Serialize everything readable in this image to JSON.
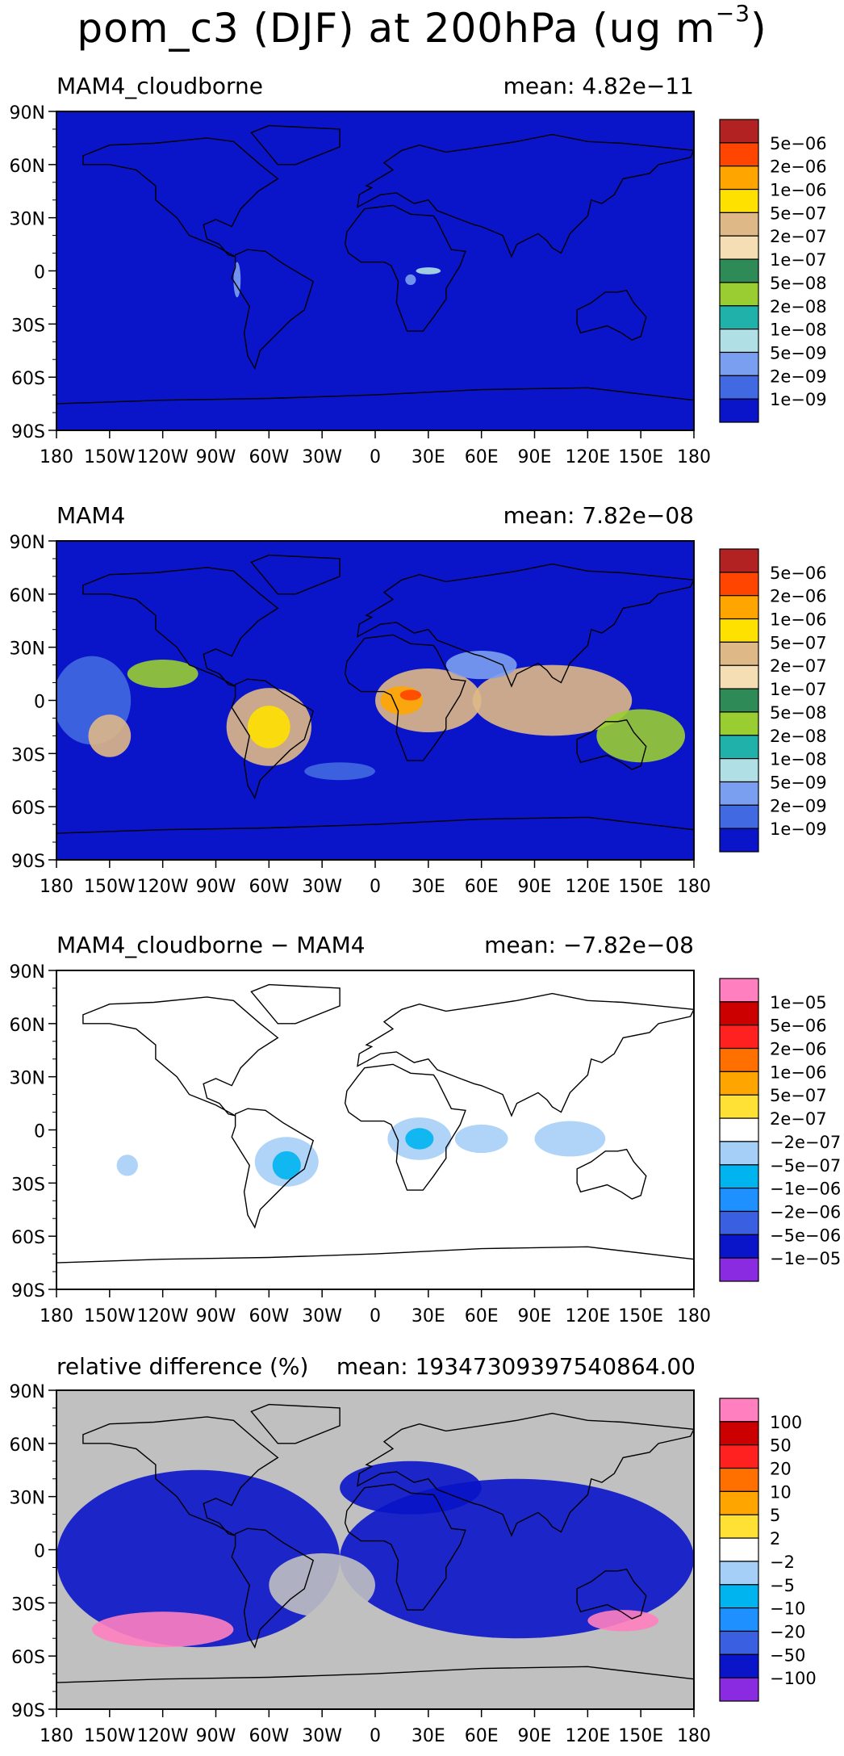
{
  "figure": {
    "title_main": "pom_c3 (DJF) at 200hPa (ug m",
    "title_sup": "−3",
    "title_close": ")"
  },
  "axes": {
    "lat_labels": [
      "90N",
      "60N",
      "30N",
      "0",
      "30S",
      "60S",
      "90S"
    ],
    "lon_labels": [
      "180",
      "150W",
      "120W",
      "90W",
      "60W",
      "30W",
      "0",
      "30E",
      "60E",
      "90E",
      "120E",
      "150E",
      "180"
    ]
  },
  "panels": [
    {
      "name": "MAM4_cloudborne",
      "mean": "mean: 4.82e−11",
      "background": "#0a14c8",
      "colorbar_labels": [
        "5e−06",
        "2e−06",
        "1e−06",
        "5e−07",
        "2e−07",
        "1e−07",
        "5e−08",
        "2e−08",
        "1e−08",
        "5e−09",
        "2e−09",
        "1e−09"
      ],
      "colorbar_colors": [
        "#b22222",
        "#ff4500",
        "#ffa500",
        "#ffe100",
        "#deb887",
        "#f5deb3",
        "#2e8b57",
        "#9acd32",
        "#20b2aa",
        "#b0e0e6",
        "#7b9ff0",
        "#4169e1",
        "#0a14c8"
      ]
    },
    {
      "name": "MAM4",
      "mean": "mean: 7.82e−08",
      "background": "#0a14c8",
      "colorbar_labels": [
        "5e−06",
        "2e−06",
        "1e−06",
        "5e−07",
        "2e−07",
        "1e−07",
        "5e−08",
        "2e−08",
        "1e−08",
        "5e−09",
        "2e−09",
        "1e−09"
      ],
      "colorbar_colors": [
        "#b22222",
        "#ff4500",
        "#ffa500",
        "#ffe100",
        "#deb887",
        "#f5deb3",
        "#2e8b57",
        "#9acd32",
        "#20b2aa",
        "#b0e0e6",
        "#7b9ff0",
        "#4169e1",
        "#0a14c8"
      ]
    },
    {
      "name": "MAM4_cloudborne − MAM4",
      "mean": "mean: −7.82e−08",
      "background": "#ffffff",
      "colorbar_labels": [
        "1e−05",
        "5e−06",
        "2e−06",
        "1e−06",
        "5e−07",
        "2e−07",
        "−2e−07",
        "−5e−07",
        "−1e−06",
        "−2e−06",
        "−5e−06",
        "−1e−05"
      ],
      "colorbar_colors": [
        "#ff7fbf",
        "#cd0000",
        "#ff2020",
        "#ff7000",
        "#ffa500",
        "#ffe135",
        "#ffffff",
        "#a6cff7",
        "#00b4f0",
        "#1e90ff",
        "#3a5fe0",
        "#0a14c8",
        "#8a2be2"
      ]
    },
    {
      "name": "relative difference (%)",
      "mean": "mean: 19347309397540864.00",
      "background": "#c0c0c0",
      "colorbar_labels": [
        "100",
        "50",
        "20",
        "10",
        "5",
        "2",
        "−2",
        "−5",
        "−10",
        "−20",
        "−50",
        "−100"
      ],
      "colorbar_colors": [
        "#ff7fbf",
        "#cd0000",
        "#ff2020",
        "#ff7000",
        "#ffa500",
        "#ffe135",
        "#ffffff",
        "#a6cff7",
        "#00b4f0",
        "#1e90ff",
        "#3a5fe0",
        "#0a14c8",
        "#8a2be2"
      ]
    }
  ]
}
